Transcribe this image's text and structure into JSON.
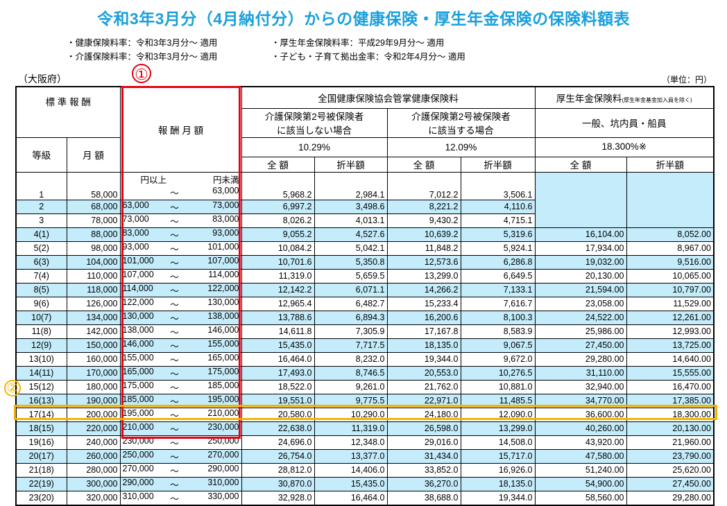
{
  "title": "令和3年3月分（4月納付分）からの健康保険・厚生年金保険の保険料額表",
  "notes": [
    "・健康保険料率：令和3年3月分～ 適用",
    "・厚生年金保険料率：平成29年9月分～ 適用",
    "・介護保険料率：令和3年3月分～ 適用",
    "・子ども・子育て拠出金率：令和2年4月分～ 適用"
  ],
  "prefecture": "（大阪府）",
  "unit": "（単位：円）",
  "annotations": {
    "mark1": "①",
    "mark2": "②",
    "mark1_color": "#e60012",
    "mark2_color": "#f5b300"
  },
  "header": {
    "standard_remuneration": "標 準 報 酬",
    "grade": "等級",
    "monthly": "月 額",
    "remuneration_range": "報 酬 月 額",
    "health_insurance": "全国健康保険協会管掌健康保険料",
    "pension": "厚生年金保険料",
    "pension_note": "(厚生年金基金加入員を除く)",
    "no_care_line1": "介護保険第2号被保険者",
    "no_care_line2": "に該当しない場合",
    "care_line1": "介護保険第2号被保険者",
    "care_line2": "に該当する場合",
    "pension_type": "一般、坑内員・船員",
    "rate_no_care": "10.29%",
    "rate_care": "12.09%",
    "rate_pension": "18.300%※",
    "full": "全 額",
    "half": "折半額",
    "from_label": "円以上",
    "to_label": "円未満",
    "tilde": "～"
  },
  "rows": [
    {
      "grade": "1",
      "monthly": "58,000",
      "from": "",
      "to": "63,000",
      "nc_full": "5,968.2",
      "nc_half": "2,984.1",
      "c_full": "7,012.2",
      "c_half": "3,506.1",
      "p_full": "",
      "p_half": ""
    },
    {
      "grade": "2",
      "monthly": "68,000",
      "from": "63,000",
      "to": "73,000",
      "nc_full": "6,997.2",
      "nc_half": "3,498.6",
      "c_full": "8,221.2",
      "c_half": "4,110.6",
      "p_full": "",
      "p_half": ""
    },
    {
      "grade": "3",
      "monthly": "78,000",
      "from": "73,000",
      "to": "83,000",
      "nc_full": "8,026.2",
      "nc_half": "4,013.1",
      "c_full": "9,430.2",
      "c_half": "4,715.1",
      "p_full": "",
      "p_half": ""
    },
    {
      "grade": "4(1)",
      "monthly": "88,000",
      "from": "83,000",
      "to": "93,000",
      "nc_full": "9,055.2",
      "nc_half": "4,527.6",
      "c_full": "10,639.2",
      "c_half": "5,319.6",
      "p_full": "16,104.00",
      "p_half": "8,052.00"
    },
    {
      "grade": "5(2)",
      "monthly": "98,000",
      "from": "93,000",
      "to": "101,000",
      "nc_full": "10,084.2",
      "nc_half": "5,042.1",
      "c_full": "11,848.2",
      "c_half": "5,924.1",
      "p_full": "17,934.00",
      "p_half": "8,967.00"
    },
    {
      "grade": "6(3)",
      "monthly": "104,000",
      "from": "101,000",
      "to": "107,000",
      "nc_full": "10,701.6",
      "nc_half": "5,350.8",
      "c_full": "12,573.6",
      "c_half": "6,286.8",
      "p_full": "19,032.00",
      "p_half": "9,516.00"
    },
    {
      "grade": "7(4)",
      "monthly": "110,000",
      "from": "107,000",
      "to": "114,000",
      "nc_full": "11,319.0",
      "nc_half": "5,659.5",
      "c_full": "13,299.0",
      "c_half": "6,649.5",
      "p_full": "20,130.00",
      "p_half": "10,065.00"
    },
    {
      "grade": "8(5)",
      "monthly": "118,000",
      "from": "114,000",
      "to": "122,000",
      "nc_full": "12,142.2",
      "nc_half": "6,071.1",
      "c_full": "14,266.2",
      "c_half": "7,133.1",
      "p_full": "21,594.00",
      "p_half": "10,797.00"
    },
    {
      "grade": "9(6)",
      "monthly": "126,000",
      "from": "122,000",
      "to": "130,000",
      "nc_full": "12,965.4",
      "nc_half": "6,482.7",
      "c_full": "15,233.4",
      "c_half": "7,616.7",
      "p_full": "23,058.00",
      "p_half": "11,529.00"
    },
    {
      "grade": "10(7)",
      "monthly": "134,000",
      "from": "130,000",
      "to": "138,000",
      "nc_full": "13,788.6",
      "nc_half": "6,894.3",
      "c_full": "16,200.6",
      "c_half": "8,100.3",
      "p_full": "24,522.00",
      "p_half": "12,261.00"
    },
    {
      "grade": "11(8)",
      "monthly": "142,000",
      "from": "138,000",
      "to": "146,000",
      "nc_full": "14,611.8",
      "nc_half": "7,305.9",
      "c_full": "17,167.8",
      "c_half": "8,583.9",
      "p_full": "25,986.00",
      "p_half": "12,993.00"
    },
    {
      "grade": "12(9)",
      "monthly": "150,000",
      "from": "146,000",
      "to": "155,000",
      "nc_full": "15,435.0",
      "nc_half": "7,717.5",
      "c_full": "18,135.0",
      "c_half": "9,067.5",
      "p_full": "27,450.00",
      "p_half": "13,725.00"
    },
    {
      "grade": "13(10)",
      "monthly": "160,000",
      "from": "155,000",
      "to": "165,000",
      "nc_full": "16,464.0",
      "nc_half": "8,232.0",
      "c_full": "19,344.0",
      "c_half": "9,672.0",
      "p_full": "29,280.00",
      "p_half": "14,640.00"
    },
    {
      "grade": "14(11)",
      "monthly": "170,000",
      "from": "165,000",
      "to": "175,000",
      "nc_full": "17,493.0",
      "nc_half": "8,746.5",
      "c_full": "20,553.0",
      "c_half": "10,276.5",
      "p_full": "31,110.00",
      "p_half": "15,555.00"
    },
    {
      "grade": "15(12)",
      "monthly": "180,000",
      "from": "175,000",
      "to": "185,000",
      "nc_full": "18,522.0",
      "nc_half": "9,261.0",
      "c_full": "21,762.0",
      "c_half": "10,881.0",
      "p_full": "32,940.00",
      "p_half": "16,470.00"
    },
    {
      "grade": "16(13)",
      "monthly": "190,000",
      "from": "185,000",
      "to": "195,000",
      "nc_full": "19,551.0",
      "nc_half": "9,775.5",
      "c_full": "22,971.0",
      "c_half": "11,485.5",
      "p_full": "34,770.00",
      "p_half": "17,385.00"
    },
    {
      "grade": "17(14)",
      "monthly": "200,000",
      "from": "195,000",
      "to": "210,000",
      "nc_full": "20,580.0",
      "nc_half": "10,290.0",
      "c_full": "24,180.0",
      "c_half": "12,090.0",
      "p_full": "36,600.00",
      "p_half": "18,300.00"
    },
    {
      "grade": "18(15)",
      "monthly": "220,000",
      "from": "210,000",
      "to": "230,000",
      "nc_full": "22,638.0",
      "nc_half": "11,319.0",
      "c_full": "26,598.0",
      "c_half": "13,299.0",
      "p_full": "40,260.00",
      "p_half": "20,130.00"
    },
    {
      "grade": "19(16)",
      "monthly": "240,000",
      "from": "230,000",
      "to": "250,000",
      "nc_full": "24,696.0",
      "nc_half": "12,348.0",
      "c_full": "29,016.0",
      "c_half": "14,508.0",
      "p_full": "43,920.00",
      "p_half": "21,960.00"
    },
    {
      "grade": "20(17)",
      "monthly": "260,000",
      "from": "250,000",
      "to": "270,000",
      "nc_full": "26,754.0",
      "nc_half": "13,377.0",
      "c_full": "31,434.0",
      "c_half": "15,717.0",
      "p_full": "47,580.00",
      "p_half": "23,790.00"
    },
    {
      "grade": "21(18)",
      "monthly": "280,000",
      "from": "270,000",
      "to": "290,000",
      "nc_full": "28,812.0",
      "nc_half": "14,406.0",
      "c_full": "33,852.0",
      "c_half": "16,926.0",
      "p_full": "51,240.00",
      "p_half": "25,620.00"
    },
    {
      "grade": "22(19)",
      "monthly": "300,000",
      "from": "290,000",
      "to": "310,000",
      "nc_full": "30,870.0",
      "nc_half": "15,435.0",
      "c_full": "36,270.0",
      "c_half": "18,135.0",
      "p_full": "54,900.00",
      "p_half": "27,450.00"
    },
    {
      "grade": "23(20)",
      "monthly": "320,000",
      "from": "310,000",
      "to": "330,000",
      "nc_full": "32,928.0",
      "nc_half": "16,464.0",
      "c_full": "38,688.0",
      "c_half": "19,344.0",
      "p_full": "58,560.00",
      "p_half": "29,280.00"
    }
  ],
  "colors": {
    "title": "#1aa0dc",
    "row_highlight": "#c4ecfb",
    "box1": "#e60012",
    "box2": "#f5b300"
  }
}
